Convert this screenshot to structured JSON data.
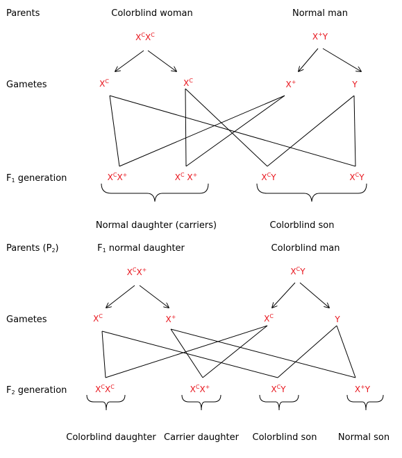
{
  "cross1": {
    "row_labels": {
      "parents": "Parents",
      "gametes": "Gametes",
      "generation_prefix": "F",
      "generation_sub": "1",
      "generation_suffix": " generation"
    },
    "parent_left": "Colorblind woman",
    "parent_right": "Normal man",
    "genotype_left": [
      {
        "base": "X",
        "sup": "C"
      },
      {
        "base": "X",
        "sup": "C"
      }
    ],
    "genotype_right": [
      {
        "base": "X",
        "sup": "+"
      },
      {
        "base": "Y",
        "sup": ""
      }
    ],
    "gametes": [
      {
        "base": "X",
        "sup": "C"
      },
      {
        "base": "X",
        "sup": "C"
      },
      {
        "base": "X",
        "sup": "+"
      },
      {
        "base": "Y",
        "sup": ""
      }
    ],
    "offspring": [
      [
        {
          "base": "X",
          "sup": "C"
        },
        {
          "base": "X",
          "sup": "+"
        }
      ],
      [
        {
          "base": "X",
          "sup": "C"
        },
        {
          "base": " X",
          "sup": "+"
        }
      ],
      [
        {
          "base": "X",
          "sup": "C"
        },
        {
          "base": "Y",
          "sup": ""
        }
      ],
      [
        {
          "base": "X",
          "sup": "C"
        },
        {
          "base": "Y",
          "sup": ""
        }
      ]
    ],
    "result_left": "Normal daughter (carriers)",
    "result_right": "Colorblind son"
  },
  "cross2": {
    "row_labels": {
      "parents_prefix": "Parents (P",
      "parents_sub": "2",
      "parents_suffix": ")",
      "gametes": "Gametes",
      "generation_prefix": "F",
      "generation_sub": "2",
      "generation_suffix": " generation"
    },
    "parent_left_prefix": "F",
    "parent_left_sub": "1",
    "parent_left_suffix": " normal daughter",
    "parent_right": "Colorblind man",
    "genotype_left": [
      {
        "base": "X",
        "sup": "C"
      },
      {
        "base": "X",
        "sup": "+"
      }
    ],
    "genotype_right": [
      {
        "base": "X",
        "sup": "C"
      },
      {
        "base": "Y",
        "sup": ""
      }
    ],
    "gametes": [
      {
        "base": "X",
        "sup": "C"
      },
      {
        "base": "X",
        "sup": "+"
      },
      {
        "base": "X",
        "sup": "C"
      },
      {
        "base": "Y",
        "sup": ""
      }
    ],
    "offspring": [
      [
        {
          "base": "X",
          "sup": "C"
        },
        {
          "base": "X",
          "sup": "C"
        }
      ],
      [
        {
          "base": "X",
          "sup": "C"
        },
        {
          "base": "X",
          "sup": "+"
        }
      ],
      [
        {
          "base": "X",
          "sup": "C"
        },
        {
          "base": "Y",
          "sup": ""
        }
      ],
      [
        {
          "base": "X",
          "sup": "+"
        },
        {
          "base": "Y",
          "sup": ""
        }
      ]
    ],
    "results": [
      "Colorblind daughter",
      "Carrier daughter",
      "Colorblind son",
      "Normal son"
    ]
  },
  "colors": {
    "allele": "#e8141c",
    "line": "#000000",
    "text": "#000000"
  }
}
